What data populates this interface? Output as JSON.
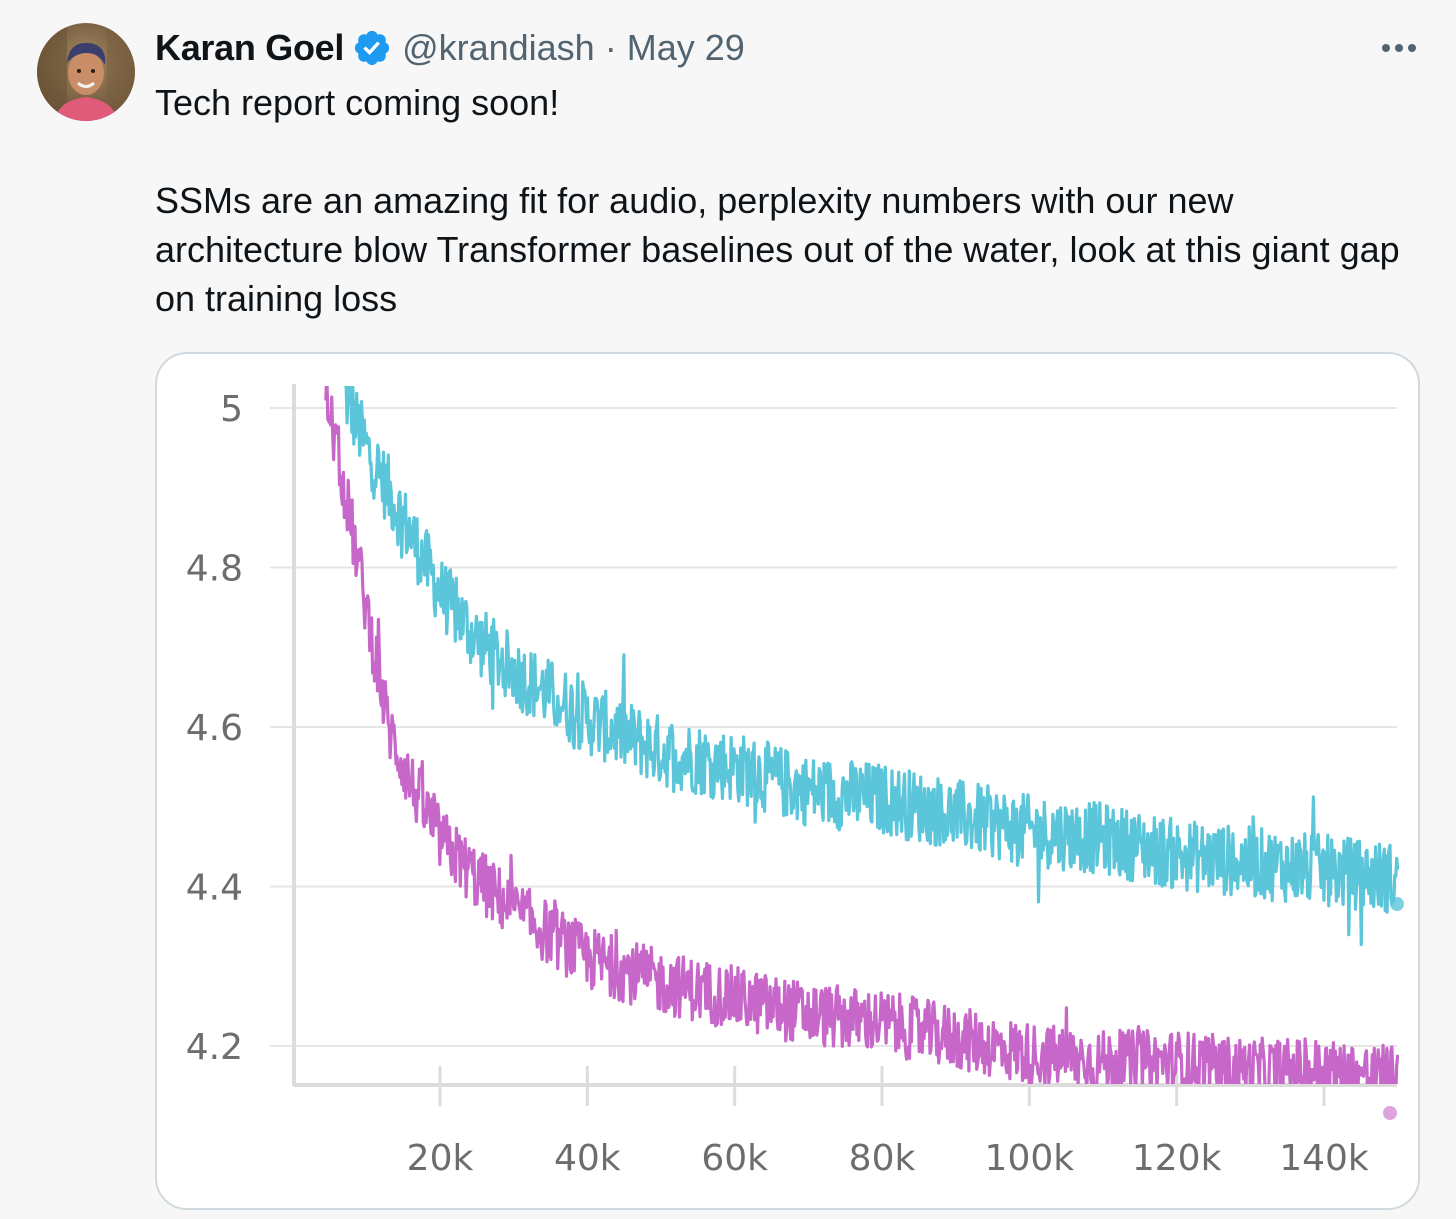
{
  "author": {
    "name": "Karan Goel",
    "handle": "@krandiash",
    "separator": "·",
    "date": "May 29",
    "verified": true,
    "verified_icon": "verified-badge-icon",
    "avatar_icon": "profile-photo"
  },
  "more_icon": "more-options-icon",
  "tweet": {
    "line1": "Tech report coming soon!",
    "line2": "SSMs are an amazing fit for audio, perplexity numbers with our new architecture blow Transformer baselines out of the water, look at this giant gap on training loss"
  },
  "colors": {
    "accent_verified": "#1d9bf0",
    "series_cyan": "#5bc5da",
    "series_magenta": "#c767c9"
  },
  "chart_data": {
    "type": "line",
    "title": "",
    "xlabel": "",
    "ylabel": "",
    "xlim": [
      0,
      150000
    ],
    "ylim": [
      4.15,
      5.02
    ],
    "grid": true,
    "x_ticks": [
      20000,
      40000,
      60000,
      80000,
      100000,
      120000,
      140000
    ],
    "x_tick_labels": [
      "20k",
      "40k",
      "60k",
      "80k",
      "100k",
      "120k",
      "140k"
    ],
    "y_ticks": [
      5,
      4.8,
      4.6,
      4.4,
      4.2
    ],
    "y_tick_labels": [
      "5",
      "4.8",
      "4.6",
      "4.4",
      "4.2"
    ],
    "series": [
      {
        "color": "#5bc5da",
        "x": [
          7000,
          10000,
          15000,
          20000,
          25000,
          30000,
          40000,
          50000,
          60000,
          70000,
          80000,
          90000,
          100000,
          110000,
          120000,
          130000,
          140000,
          150000
        ],
        "y": [
          5.02,
          4.95,
          4.86,
          4.77,
          4.71,
          4.67,
          4.61,
          4.57,
          4.55,
          4.52,
          4.51,
          4.49,
          4.47,
          4.46,
          4.44,
          4.43,
          4.42,
          4.41
        ],
        "noise": 0.045
      },
      {
        "color": "#c767c9",
        "x": [
          4500,
          7000,
          10000,
          13000,
          16000,
          20000,
          25000,
          30000,
          40000,
          50000,
          60000,
          70000,
          80000,
          90000,
          100000,
          110000,
          120000,
          130000,
          140000,
          150000
        ],
        "y": [
          5.02,
          4.9,
          4.75,
          4.6,
          4.53,
          4.46,
          4.41,
          4.37,
          4.31,
          4.28,
          4.26,
          4.24,
          4.23,
          4.21,
          4.19,
          4.18,
          4.18,
          4.17,
          4.17,
          4.16
        ],
        "noise": 0.04
      }
    ]
  }
}
